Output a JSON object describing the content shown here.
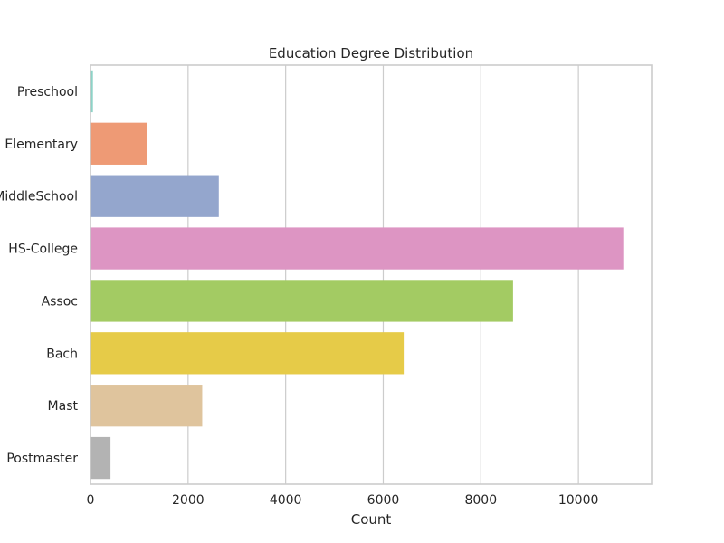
{
  "chart_data": {
    "type": "bar",
    "orientation": "horizontal",
    "title": "Education Degree Distribution",
    "xlabel": "Count",
    "ylabel": "",
    "xlim": [
      0,
      11500
    ],
    "xticks": [
      0,
      2000,
      4000,
      6000,
      8000,
      10000
    ],
    "grid": true,
    "categories": [
      "Preschool",
      "Elementary",
      "MiddleSchool",
      "HS-College",
      "Assoc",
      "Bach",
      "Mast",
      "Postmaster"
    ],
    "values": [
      50,
      1150,
      2630,
      10920,
      8660,
      6420,
      2290,
      410
    ],
    "colors": [
      "#8dd3c7",
      "#ee9a75",
      "#94a6cd",
      "#dd95c3",
      "#a3cb63",
      "#e6cb48",
      "#dfc49d",
      "#b3b3b3"
    ]
  }
}
